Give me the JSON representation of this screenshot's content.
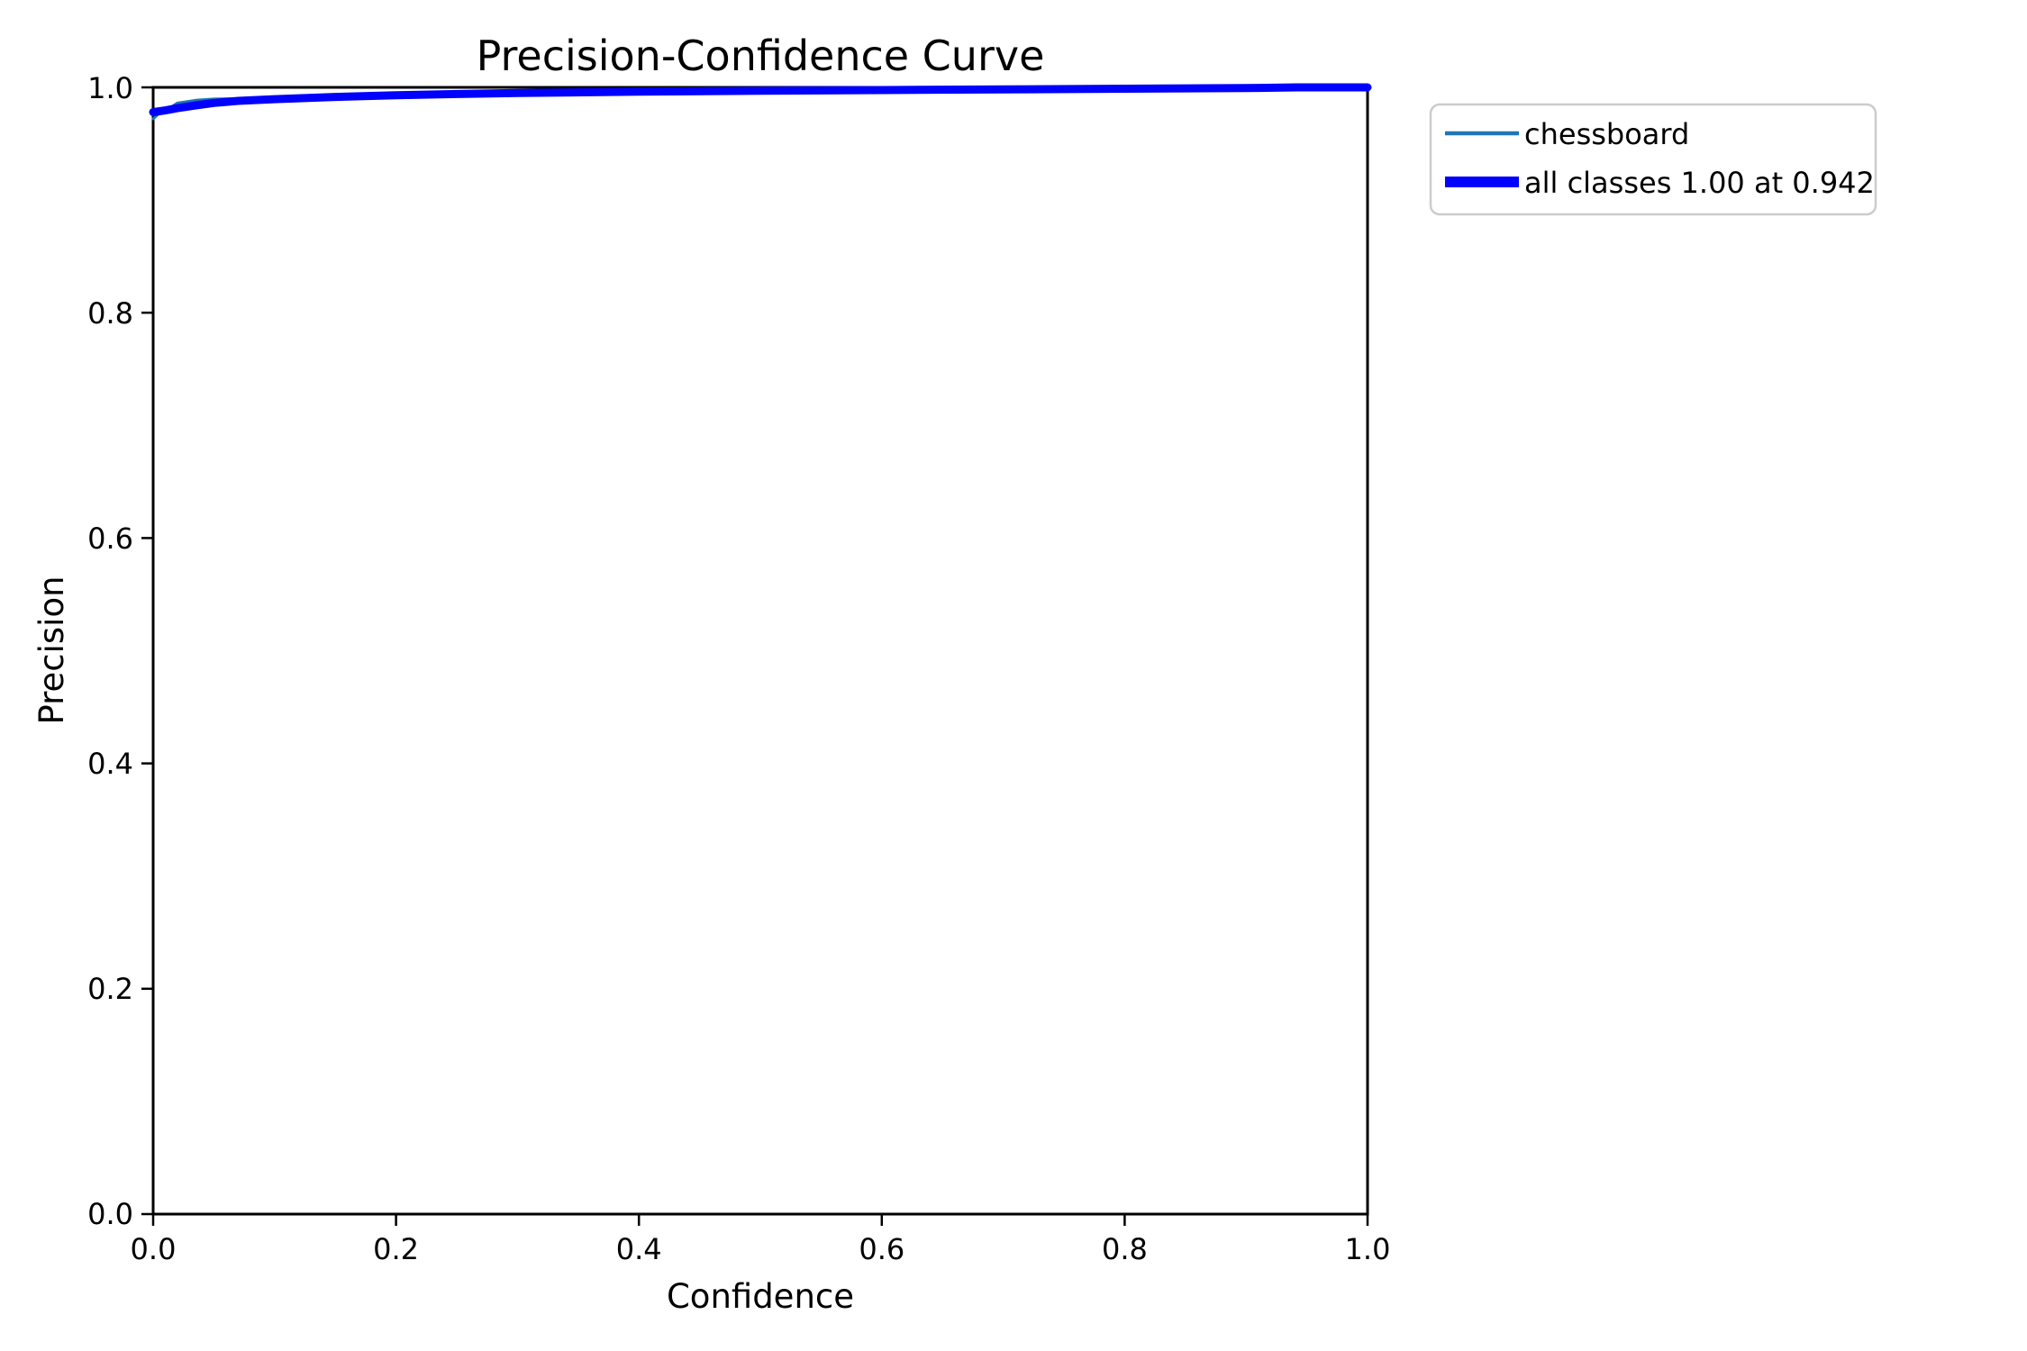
{
  "figure": {
    "title": "Precision-Confidence Curve",
    "x_axis": {
      "label": "Confidence",
      "ticks": [
        "0.0",
        "0.2",
        "0.4",
        "0.6",
        "0.8",
        "1.0"
      ]
    },
    "y_axis": {
      "label": "Precision",
      "ticks": [
        "0.0",
        "0.2",
        "0.4",
        "0.6",
        "0.8",
        "1.0"
      ]
    },
    "legend": {
      "items": [
        {
          "label": "chessboard",
          "color": "#1f77b4",
          "weight": "thin"
        },
        {
          "label": "all classes 1.00 at 0.942",
          "color": "#0000ff",
          "weight": "thick"
        }
      ]
    }
  },
  "chart_data": {
    "type": "line",
    "title": "Precision-Confidence Curve",
    "xlabel": "Confidence",
    "ylabel": "Precision",
    "xlim": [
      0.0,
      1.0
    ],
    "ylim": [
      0.0,
      1.0
    ],
    "x_ticks": [
      0.0,
      0.2,
      0.4,
      0.6,
      0.8,
      1.0
    ],
    "y_ticks": [
      0.0,
      0.2,
      0.4,
      0.6,
      0.8,
      1.0
    ],
    "grid": false,
    "legend_position": "outside upper right",
    "annotation": "all classes reach precision 1.00 at confidence 0.942",
    "series": [
      {
        "name": "chessboard",
        "color": "#1f77b4",
        "linewidth": "thin",
        "points": [
          [
            0.0,
            0.972
          ],
          [
            0.004,
            0.976
          ],
          [
            0.01,
            0.979
          ],
          [
            0.02,
            0.9862
          ],
          [
            0.035,
            0.9886
          ],
          [
            0.05,
            0.9897
          ],
          [
            0.07,
            0.99
          ],
          [
            0.1,
            0.9903
          ],
          [
            0.15,
            0.9918
          ],
          [
            0.2,
            0.9931
          ],
          [
            0.25,
            0.9941
          ],
          [
            0.3,
            0.995
          ],
          [
            0.4,
            0.9962
          ],
          [
            0.5,
            0.997
          ],
          [
            0.6,
            0.9976
          ],
          [
            0.7,
            0.9982
          ],
          [
            0.8,
            0.9988
          ],
          [
            0.9,
            0.9994
          ],
          [
            0.942,
            1.0
          ],
          [
            1.0,
            1.0
          ]
        ]
      },
      {
        "name": "all classes 1.00 at 0.942",
        "color": "#0000ff",
        "linewidth": "thick",
        "points": [
          [
            0.0,
            0.978
          ],
          [
            0.01,
            0.9795
          ],
          [
            0.02,
            0.9815
          ],
          [
            0.035,
            0.984
          ],
          [
            0.05,
            0.9862
          ],
          [
            0.07,
            0.988
          ],
          [
            0.1,
            0.9895
          ],
          [
            0.15,
            0.9915
          ],
          [
            0.2,
            0.993
          ],
          [
            0.25,
            0.9941
          ],
          [
            0.3,
            0.995
          ],
          [
            0.4,
            0.9962
          ],
          [
            0.5,
            0.997
          ],
          [
            0.6,
            0.9976
          ],
          [
            0.7,
            0.9982
          ],
          [
            0.8,
            0.9988
          ],
          [
            0.9,
            0.9994
          ],
          [
            0.942,
            1.0
          ],
          [
            1.0,
            1.0
          ]
        ]
      }
    ]
  }
}
